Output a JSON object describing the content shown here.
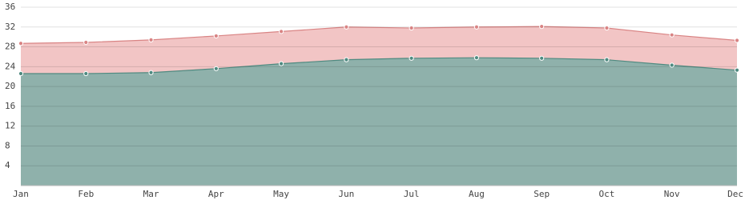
{
  "chart_data": {
    "type": "area",
    "categories": [
      "Jan",
      "Feb",
      "Mar",
      "Apr",
      "May",
      "Jun",
      "Jul",
      "Aug",
      "Sep",
      "Oct",
      "Nov",
      "Dec"
    ],
    "series": [
      {
        "color": "#d98484",
        "fill": "#f2c5c5",
        "values": [
          28.7,
          28.9,
          29.4,
          30.2,
          31.1,
          32.0,
          31.8,
          32.0,
          32.1,
          31.8,
          30.4,
          29.3
        ]
      },
      {
        "color": "#4f8a80",
        "fill": "#8fb1ab",
        "values": [
          22.6,
          22.6,
          22.8,
          23.6,
          24.6,
          25.4,
          25.7,
          25.8,
          25.7,
          25.4,
          24.3,
          23.3
        ]
      }
    ],
    "ylim": [
      0,
      36
    ],
    "yticks": [
      4,
      8,
      12,
      16,
      20,
      24,
      28,
      32,
      36
    ],
    "grid": true
  }
}
